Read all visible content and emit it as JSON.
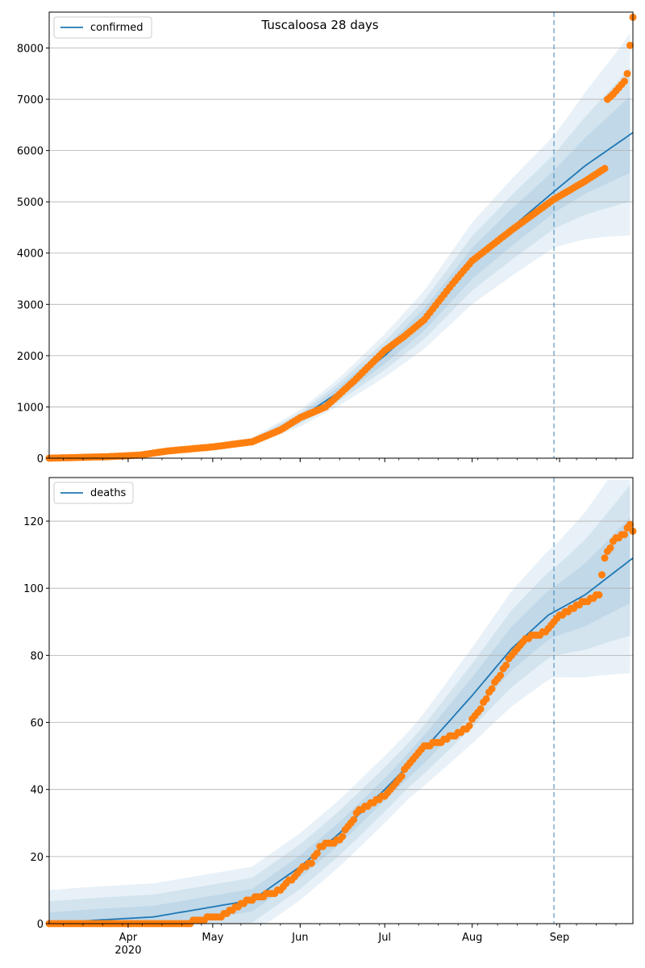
{
  "title": "Tuscaloosa 28 days",
  "colors": {
    "line": "#1f77b4",
    "points": "#ff7f0e",
    "band": "#1f77b4",
    "grid": "#b0b0b0"
  },
  "chart_data": [
    {
      "type": "line",
      "title": "Tuscaloosa 28 days",
      "legend": "confirmed",
      "legend_position": "top-left",
      "grid": "horizontal",
      "x_range": [
        "2020-03-04",
        "2020-09-27"
      ],
      "ylim": [
        0,
        8700
      ],
      "y_ticks": [
        "0",
        "1000",
        "2000",
        "3000",
        "4000",
        "5000",
        "6000",
        "7000",
        "8000"
      ],
      "forecast_start": "2020-08-30",
      "model_knots": [
        [
          "2020-03-04",
          0
        ],
        [
          "2020-03-20",
          30
        ],
        [
          "2020-04-01",
          70
        ],
        [
          "2020-04-15",
          150
        ],
        [
          "2020-05-01",
          230
        ],
        [
          "2020-05-15",
          330
        ],
        [
          "2020-06-01",
          780
        ],
        [
          "2020-06-15",
          1300
        ],
        [
          "2020-07-01",
          2000
        ],
        [
          "2020-07-15",
          2700
        ],
        [
          "2020-08-01",
          3800
        ],
        [
          "2020-08-15",
          4500
        ],
        [
          "2020-08-30",
          5200
        ],
        [
          "2020-09-10",
          5700
        ],
        [
          "2020-09-27",
          6350
        ]
      ],
      "observed_knots": [
        [
          "2020-03-04",
          0
        ],
        [
          "2020-03-25",
          30
        ],
        [
          "2020-04-05",
          60
        ],
        [
          "2020-04-15",
          140
        ],
        [
          "2020-05-01",
          220
        ],
        [
          "2020-05-15",
          320
        ],
        [
          "2020-05-25",
          550
        ],
        [
          "2020-06-01",
          790
        ],
        [
          "2020-06-10",
          1000
        ],
        [
          "2020-06-20",
          1500
        ],
        [
          "2020-07-01",
          2100
        ],
        [
          "2020-07-08",
          2380
        ],
        [
          "2020-07-15",
          2700
        ],
        [
          "2020-07-25",
          3400
        ],
        [
          "2020-08-01",
          3850
        ],
        [
          "2020-08-15",
          4450
        ],
        [
          "2020-08-30",
          5050
        ],
        [
          "2020-09-10",
          5400
        ],
        [
          "2020-09-17",
          5650
        ],
        [
          "2020-09-18",
          7000
        ],
        [
          "2020-09-20",
          7100
        ],
        [
          "2020-09-24",
          7350
        ],
        [
          "2020-09-25",
          7500
        ],
        [
          "2020-09-27",
          8600
        ]
      ]
    },
    {
      "type": "line",
      "title": "",
      "legend": "deaths",
      "legend_position": "top-left",
      "grid": "horizontal",
      "x_range": [
        "2020-03-04",
        "2020-09-27"
      ],
      "ylim": [
        0,
        133
      ],
      "y_ticks": [
        "0",
        "20",
        "40",
        "60",
        "80",
        "100",
        "120"
      ],
      "x_ticks": [
        "Apr",
        "May",
        "Jun",
        "Jul",
        "Aug",
        "Sep"
      ],
      "x_year_label": "2020",
      "forecast_start": "2020-08-30",
      "model_knots": [
        [
          "2020-03-04",
          0
        ],
        [
          "2020-03-20",
          1
        ],
        [
          "2020-04-10",
          2
        ],
        [
          "2020-05-01",
          5
        ],
        [
          "2020-05-15",
          7
        ],
        [
          "2020-06-01",
          17
        ],
        [
          "2020-06-15",
          27
        ],
        [
          "2020-07-01",
          40
        ],
        [
          "2020-07-15",
          52
        ],
        [
          "2020-08-01",
          68
        ],
        [
          "2020-08-15",
          82
        ],
        [
          "2020-08-28",
          92
        ],
        [
          "2020-09-10",
          98
        ],
        [
          "2020-09-27",
          109
        ]
      ],
      "observed_knots": [
        [
          "2020-03-04",
          0
        ],
        [
          "2020-04-22",
          0
        ],
        [
          "2020-04-25",
          1
        ],
        [
          "2020-05-03",
          2
        ],
        [
          "2020-05-08",
          4
        ],
        [
          "2020-05-14",
          7
        ],
        [
          "2020-05-18",
          8
        ],
        [
          "2020-05-25",
          10
        ],
        [
          "2020-06-01",
          16
        ],
        [
          "2020-06-05",
          18
        ],
        [
          "2020-06-08",
          23
        ],
        [
          "2020-06-15",
          25
        ],
        [
          "2020-06-22",
          34
        ],
        [
          "2020-07-01",
          38
        ],
        [
          "2020-07-05",
          42
        ],
        [
          "2020-07-10",
          48
        ],
        [
          "2020-07-15",
          53
        ],
        [
          "2020-07-20",
          54
        ],
        [
          "2020-07-30",
          58
        ],
        [
          "2020-08-03",
          63
        ],
        [
          "2020-08-10",
          73
        ],
        [
          "2020-08-15",
          80
        ],
        [
          "2020-08-20",
          85
        ],
        [
          "2020-08-27",
          87
        ],
        [
          "2020-08-31",
          91
        ],
        [
          "2020-09-10",
          96
        ],
        [
          "2020-09-15",
          98
        ],
        [
          "2020-09-17",
          109
        ],
        [
          "2020-09-20",
          114
        ],
        [
          "2020-09-24",
          116
        ],
        [
          "2020-09-26",
          119
        ],
        [
          "2020-09-27",
          117
        ]
      ]
    }
  ]
}
